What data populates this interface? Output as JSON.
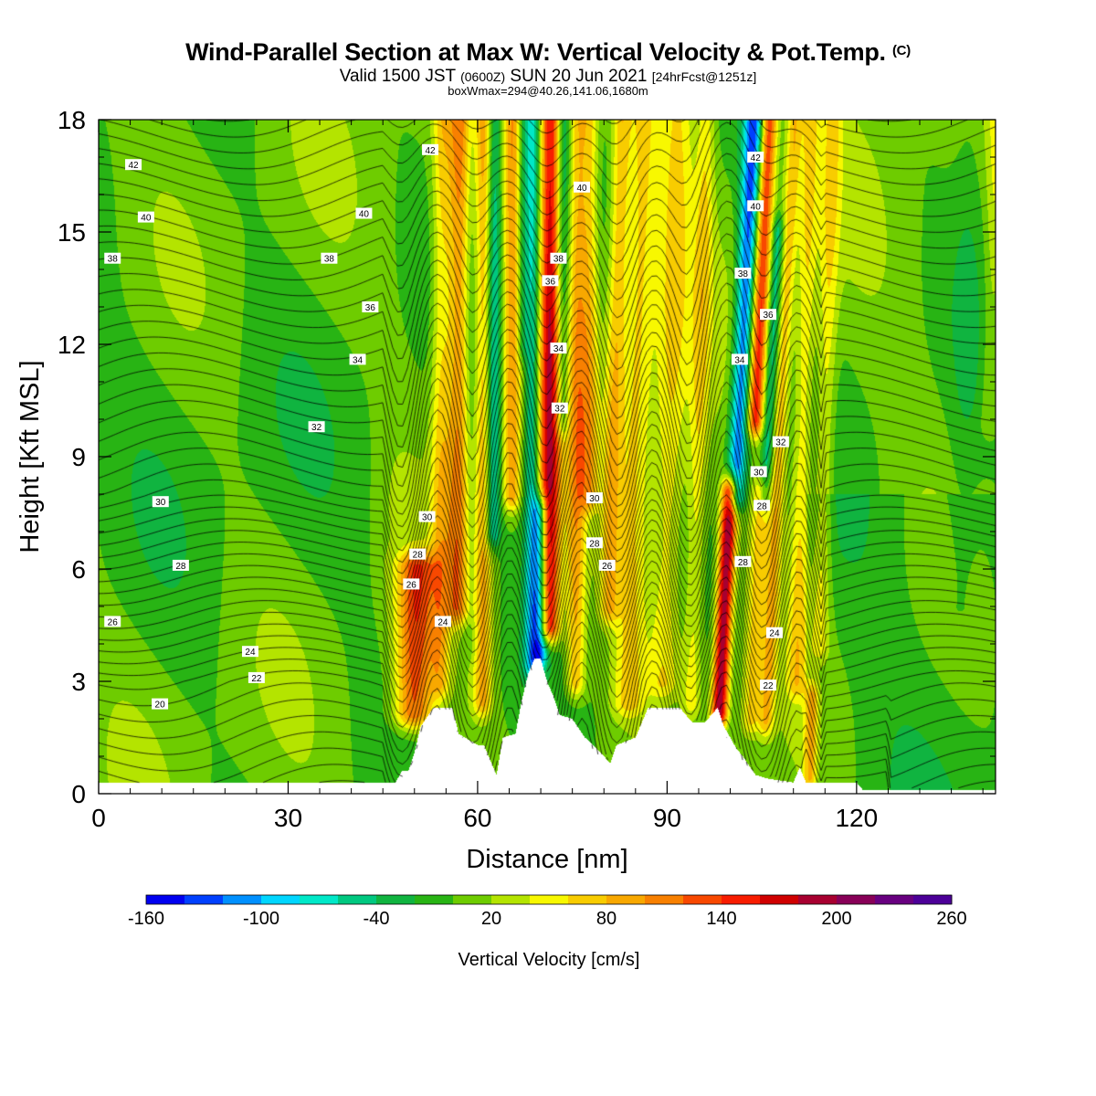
{
  "title": {
    "main": "Wind-Parallel Section at Max W: Vertical Velocity & Pot.Temp.",
    "copyright": "(C)",
    "valid_prefix": "Valid 1500 JST",
    "valid_utc": "(0600Z)",
    "valid_date": "SUN 20 Jun 2021",
    "forecast": "[24hrFcst@1251z]",
    "box_wmax": "boxWmax=294@40.26,141.06,1680m"
  },
  "chart_data": {
    "type": "heatmap",
    "xlabel": "Distance [nm]",
    "ylabel": "Height [Kft MSL]",
    "xlim": [
      0,
      142
    ],
    "ylim": [
      0,
      18
    ],
    "x_ticks": [
      "0",
      "30",
      "60",
      "90",
      "120"
    ],
    "x_tick_values": [
      0,
      30,
      60,
      90,
      120
    ],
    "y_ticks": [
      "0",
      "3",
      "6",
      "9",
      "12",
      "15",
      "18"
    ],
    "y_tick_values": [
      0,
      3,
      6,
      9,
      12,
      15,
      18
    ],
    "colorbar": {
      "label": "Vertical Velocity [cm/s]",
      "levels": [
        -160,
        -140,
        -120,
        -100,
        -80,
        -60,
        -40,
        -20,
        0,
        20,
        40,
        60,
        80,
        100,
        120,
        140,
        160,
        180,
        200,
        220,
        240,
        260
      ],
      "tick_labels": [
        "-160",
        "-100",
        "-40",
        "20",
        "80",
        "140",
        "200",
        "260"
      ],
      "tick_values": [
        -160,
        -100,
        -40,
        20,
        80,
        140,
        200,
        260
      ],
      "colors": [
        "#0000f0",
        "#0040ff",
        "#0090ff",
        "#00d6ff",
        "#00e8c8",
        "#00c880",
        "#10b440",
        "#28b414",
        "#6ecc00",
        "#b4e400",
        "#f8f800",
        "#f8cc00",
        "#f8a800",
        "#f88000",
        "#f84800",
        "#f81c00",
        "#d00000",
        "#a80030",
        "#880058",
        "#680080",
        "#4c0098"
      ]
    },
    "terrain": {
      "distance_nm": [
        0,
        47,
        48,
        49,
        50,
        51,
        53,
        56,
        57,
        60,
        61,
        63,
        64,
        66,
        67,
        68,
        69,
        70,
        71,
        72,
        73,
        75,
        77,
        80,
        81,
        82,
        85,
        87,
        90,
        92,
        94,
        96,
        98,
        99,
        101,
        102,
        104,
        106,
        110,
        111,
        112,
        120,
        121,
        142
      ],
      "height_kft": [
        0.3,
        0.3,
        0.6,
        0.6,
        1.1,
        1.8,
        2.3,
        2.3,
        1.6,
        1.3,
        1.3,
        0.5,
        1.5,
        1.6,
        2.5,
        3.2,
        3.6,
        3.6,
        3.0,
        2.6,
        2.1,
        2.0,
        1.5,
        1.0,
        0.8,
        1.3,
        1.5,
        2.3,
        2.3,
        2.3,
        1.9,
        1.9,
        2.3,
        1.8,
        1.2,
        1.0,
        0.5,
        0.4,
        0.3,
        0.7,
        0.3,
        0.3,
        0.1,
        0.1
      ]
    },
    "w_features": [
      {
        "x": 50,
        "y0": 2.2,
        "y1": 6,
        "w": 3,
        "peak": 120
      },
      {
        "x": 54,
        "y0": 3,
        "y1": 18,
        "w": 1.5,
        "peak": 60
      },
      {
        "x": 56.8,
        "y0": 5,
        "y1": 18,
        "w": 1.8,
        "peak": 100
      },
      {
        "x": 58.8,
        "y0": 4,
        "y1": 18,
        "w": 1.2,
        "peak": -20
      },
      {
        "x": 60.8,
        "y0": 2.5,
        "y1": 18,
        "w": 1.5,
        "peak": 80
      },
      {
        "x": 62.3,
        "y0": 7,
        "y1": 18,
        "w": 1.2,
        "peak": -80
      },
      {
        "x": 65.3,
        "y0": 8,
        "y1": 18,
        "w": 1.4,
        "peak": 90
      },
      {
        "x": 66.8,
        "y0": 12,
        "y1": 18,
        "w": 1.0,
        "peak": -40
      },
      {
        "x": 68.5,
        "y0": 3.5,
        "y1": 18,
        "w": 1.3,
        "peak": -80
      },
      {
        "x": 71.3,
        "y0": 4.5,
        "y1": 18,
        "w": 1.7,
        "peak": 170
      },
      {
        "x": 69.8,
        "y0": 3.8,
        "y1": 7.5,
        "w": 1.2,
        "peak": -110
      },
      {
        "x": 73.2,
        "y0": 10,
        "y1": 18,
        "w": 1.2,
        "peak": -60
      },
      {
        "x": 75.5,
        "y0": 3,
        "y1": 18,
        "w": 1.5,
        "peak": 80
      },
      {
        "x": 77.5,
        "y0": 8,
        "y1": 18,
        "w": 1.5,
        "peak": 70
      },
      {
        "x": 80.5,
        "y0": 5,
        "y1": 18,
        "w": 1.5,
        "peak": 70
      },
      {
        "x": 84,
        "y0": 2.5,
        "y1": 18,
        "w": 2.5,
        "peak": 60
      },
      {
        "x": 89.5,
        "y0": 3,
        "y1": 18,
        "w": 2.5,
        "peak": 55
      },
      {
        "x": 94,
        "y0": 2.5,
        "y1": 18,
        "w": 1.5,
        "peak": 50
      },
      {
        "x": 98.5,
        "y0": 2.2,
        "y1": 8,
        "w": 1.3,
        "peak": 200
      },
      {
        "x": 99.5,
        "y0": 8,
        "y1": 18,
        "w": 1.5,
        "peak": -130
      },
      {
        "x": 102,
        "y0": 10,
        "y1": 18,
        "w": 1.3,
        "peak": 140
      },
      {
        "x": 103.5,
        "y0": 2,
        "y1": 8,
        "w": 1.5,
        "peak": 60
      },
      {
        "x": 104.2,
        "y0": 8,
        "y1": 15,
        "w": 1.0,
        "peak": -60
      },
      {
        "x": 106,
        "y0": 2,
        "y1": 18,
        "w": 1.2,
        "peak": 70
      },
      {
        "x": 110.5,
        "y0": 3,
        "y1": 18,
        "w": 1.5,
        "peak": 55
      },
      {
        "x": 114,
        "y0": 4,
        "y1": 18,
        "w": 1.5,
        "peak": 50
      },
      {
        "x": 113,
        "y0": 0.5,
        "y1": 2.5,
        "w": 1.0,
        "peak": 80
      },
      {
        "x": 136,
        "y0": 5,
        "y1": 18,
        "w": 2.5,
        "peak": -15
      },
      {
        "x": 140,
        "y0": 10,
        "y1": 18,
        "w": 1.5,
        "peak": 30
      }
    ],
    "theta_contour_values": [
      20,
      22,
      24,
      26,
      28,
      30,
      32,
      34,
      36,
      38,
      40,
      42
    ],
    "theta_labels": [
      {
        "text": "42",
        "x": 5.5,
        "y": 16.8
      },
      {
        "text": "40",
        "x": 7.5,
        "y": 15.4
      },
      {
        "text": "38",
        "x": 2.2,
        "y": 14.3
      },
      {
        "text": "30",
        "x": 9.8,
        "y": 7.8
      },
      {
        "text": "28",
        "x": 13,
        "y": 6.1
      },
      {
        "text": "26",
        "x": 2.2,
        "y": 4.6
      },
      {
        "text": "24",
        "x": 24,
        "y": 3.8
      },
      {
        "text": "22",
        "x": 25,
        "y": 3.1
      },
      {
        "text": "20",
        "x": 9.7,
        "y": 2.4
      },
      {
        "text": "40",
        "x": 42,
        "y": 15.5
      },
      {
        "text": "38",
        "x": 36.5,
        "y": 14.3
      },
      {
        "text": "36",
        "x": 43,
        "y": 13.0
      },
      {
        "text": "34",
        "x": 41,
        "y": 11.6
      },
      {
        "text": "32",
        "x": 34.5,
        "y": 9.8
      },
      {
        "text": "42",
        "x": 52.5,
        "y": 17.2
      },
      {
        "text": "30",
        "x": 52,
        "y": 7.4
      },
      {
        "text": "28",
        "x": 50.5,
        "y": 6.4
      },
      {
        "text": "26",
        "x": 49.5,
        "y": 5.6
      },
      {
        "text": "24",
        "x": 54.5,
        "y": 4.6
      },
      {
        "text": "40",
        "x": 76.5,
        "y": 16.2
      },
      {
        "text": "38",
        "x": 72.8,
        "y": 14.3
      },
      {
        "text": "36",
        "x": 71.5,
        "y": 13.7
      },
      {
        "text": "34",
        "x": 72.8,
        "y": 11.9
      },
      {
        "text": "32",
        "x": 73,
        "y": 10.3
      },
      {
        "text": "30",
        "x": 78.5,
        "y": 7.9
      },
      {
        "text": "28",
        "x": 78.5,
        "y": 6.7
      },
      {
        "text": "26",
        "x": 80.5,
        "y": 6.1
      },
      {
        "text": "42",
        "x": 104,
        "y": 17.0
      },
      {
        "text": "40",
        "x": 104,
        "y": 15.7
      },
      {
        "text": "38",
        "x": 102,
        "y": 13.9
      },
      {
        "text": "36",
        "x": 106,
        "y": 12.8
      },
      {
        "text": "34",
        "x": 101.5,
        "y": 11.6
      },
      {
        "text": "32",
        "x": 108,
        "y": 9.4
      },
      {
        "text": "30",
        "x": 104.5,
        "y": 8.6
      },
      {
        "text": "28",
        "x": 105,
        "y": 7.7
      },
      {
        "text": "28",
        "x": 102,
        "y": 6.2
      },
      {
        "text": "24",
        "x": 107,
        "y": 4.3
      },
      {
        "text": "22",
        "x": 106,
        "y": 2.9
      }
    ]
  }
}
